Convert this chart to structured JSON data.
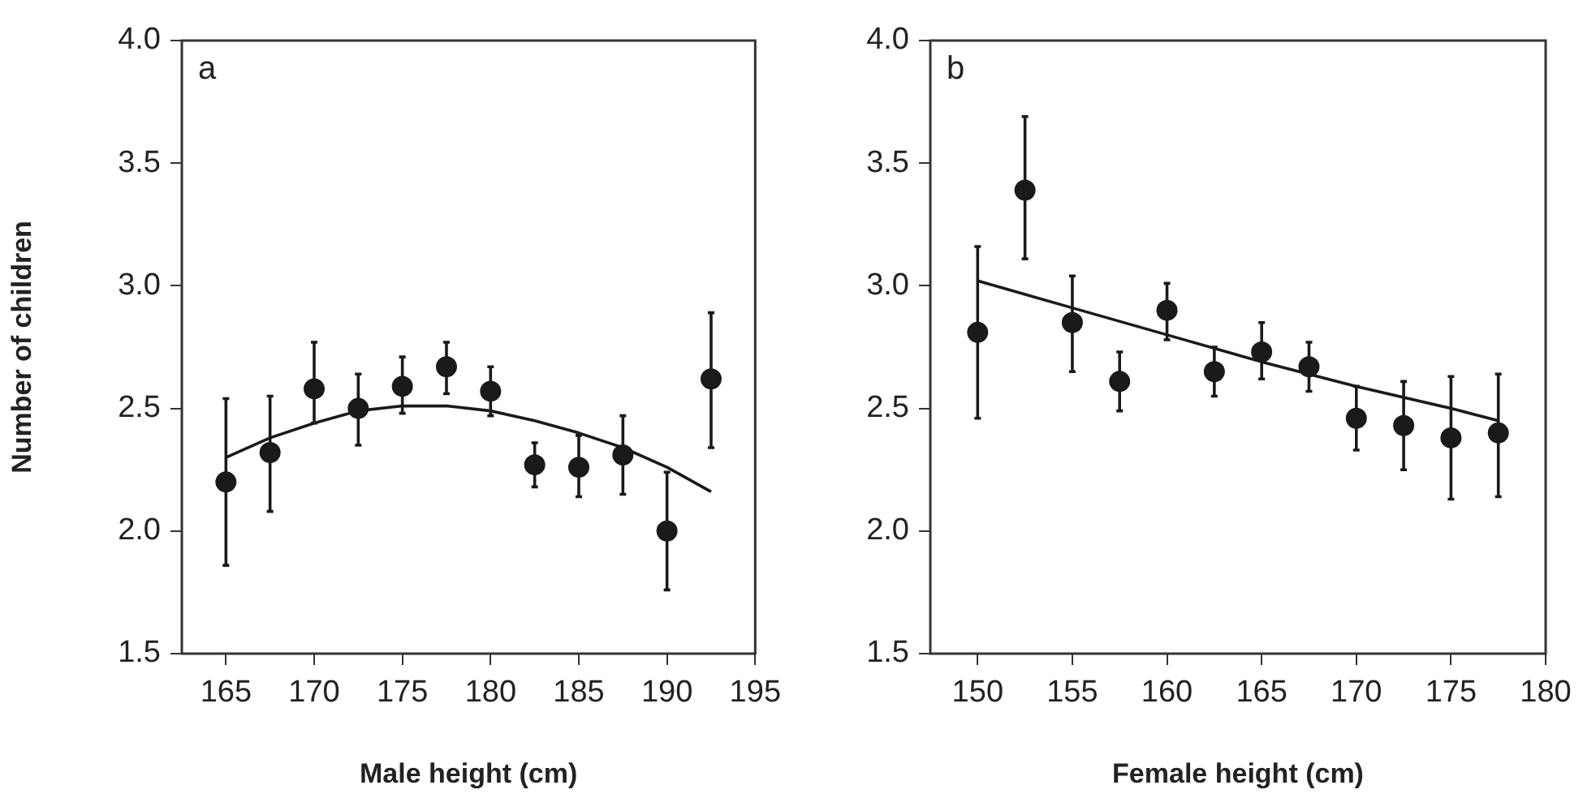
{
  "chart_data": [
    {
      "type": "scatter",
      "xlabel": "Male height (cm)",
      "ylabel": "Number of children",
      "annotations": [
        "a"
      ],
      "xlim": [
        162.5,
        195
      ],
      "xticks": [
        165,
        170,
        175,
        180,
        185,
        190,
        195
      ],
      "ylim": [
        1.5,
        4.0
      ],
      "yticks": [
        {
          "value": 1.5,
          "label": "1.5"
        },
        {
          "value": 2,
          "label": "2.0"
        },
        {
          "value": 2.5,
          "label": "2.5"
        },
        {
          "value": 3,
          "label": "3.0"
        },
        {
          "value": 3.5,
          "label": "3.5"
        },
        {
          "value": 4,
          "label": "4.0"
        }
      ],
      "series": [
        {
          "type": "scatter",
          "color": "#1a1a1a",
          "marker": "circle",
          "x": [
            165,
            167.5,
            170,
            172.5,
            175,
            177.5,
            180,
            182.5,
            185,
            187.5,
            190,
            192.5
          ],
          "values": [
            2.2,
            2.32,
            2.58,
            2.5,
            2.59,
            2.67,
            2.57,
            2.27,
            2.26,
            2.31,
            2.0,
            2.62
          ],
          "errors": [
            [
              1.86,
              2.54
            ],
            [
              2.08,
              2.55
            ],
            [
              2.44,
              2.77
            ],
            [
              2.35,
              2.64
            ],
            [
              2.48,
              2.71
            ],
            [
              2.56,
              2.77
            ],
            [
              2.47,
              2.67
            ],
            [
              2.18,
              2.36
            ],
            [
              2.14,
              2.39
            ],
            [
              2.15,
              2.47
            ],
            [
              1.76,
              2.24
            ],
            [
              2.34,
              2.89
            ]
          ]
        },
        {
          "type": "line",
          "color": "#1a1a1a",
          "marker": "none",
          "x": [
            165,
            167.5,
            170,
            172.5,
            175,
            177.5,
            180,
            182.5,
            185,
            187.5,
            190,
            192.5
          ],
          "values": [
            2.3,
            2.38,
            2.44,
            2.49,
            2.51,
            2.51,
            2.49,
            2.45,
            2.4,
            2.34,
            2.26,
            2.16
          ]
        }
      ]
    },
    {
      "type": "scatter",
      "xlabel": "Female height (cm)",
      "annotations": [
        "b"
      ],
      "xlim": [
        147.5,
        180
      ],
      "xticks": [
        150,
        155,
        160,
        165,
        170,
        175,
        180
      ],
      "ylim": [
        1.5,
        4.0
      ],
      "yticks": [
        {
          "value": 1.5,
          "label": "1.5"
        },
        {
          "value": 2,
          "label": "2.0"
        },
        {
          "value": 2.5,
          "label": "2.5"
        },
        {
          "value": 3,
          "label": "3.0"
        },
        {
          "value": 3.5,
          "label": "3.5"
        },
        {
          "value": 4,
          "label": "4.0"
        }
      ],
      "series": [
        {
          "type": "scatter",
          "color": "#1a1a1a",
          "marker": "circle",
          "x": [
            150,
            152.5,
            155,
            157.5,
            160,
            162.5,
            165,
            167.5,
            170,
            172.5,
            175,
            177.5
          ],
          "values": [
            2.81,
            3.39,
            2.85,
            2.61,
            2.9,
            2.65,
            2.73,
            2.67,
            2.46,
            2.43,
            2.38,
            2.4
          ],
          "errors": [
            [
              2.46,
              3.16
            ],
            [
              3.11,
              3.69
            ],
            [
              2.65,
              3.04
            ],
            [
              2.49,
              2.73
            ],
            [
              2.78,
              3.01
            ],
            [
              2.55,
              2.75
            ],
            [
              2.62,
              2.85
            ],
            [
              2.57,
              2.77
            ],
            [
              2.33,
              2.59
            ],
            [
              2.25,
              2.61
            ],
            [
              2.13,
              2.63
            ],
            [
              2.14,
              2.64
            ]
          ]
        },
        {
          "type": "line",
          "color": "#1a1a1a",
          "marker": "none",
          "x": [
            150,
            155,
            160,
            165,
            170,
            175,
            177.5
          ],
          "values": [
            3.02,
            2.91,
            2.8,
            2.69,
            2.59,
            2.5,
            2.45
          ]
        }
      ]
    }
  ]
}
